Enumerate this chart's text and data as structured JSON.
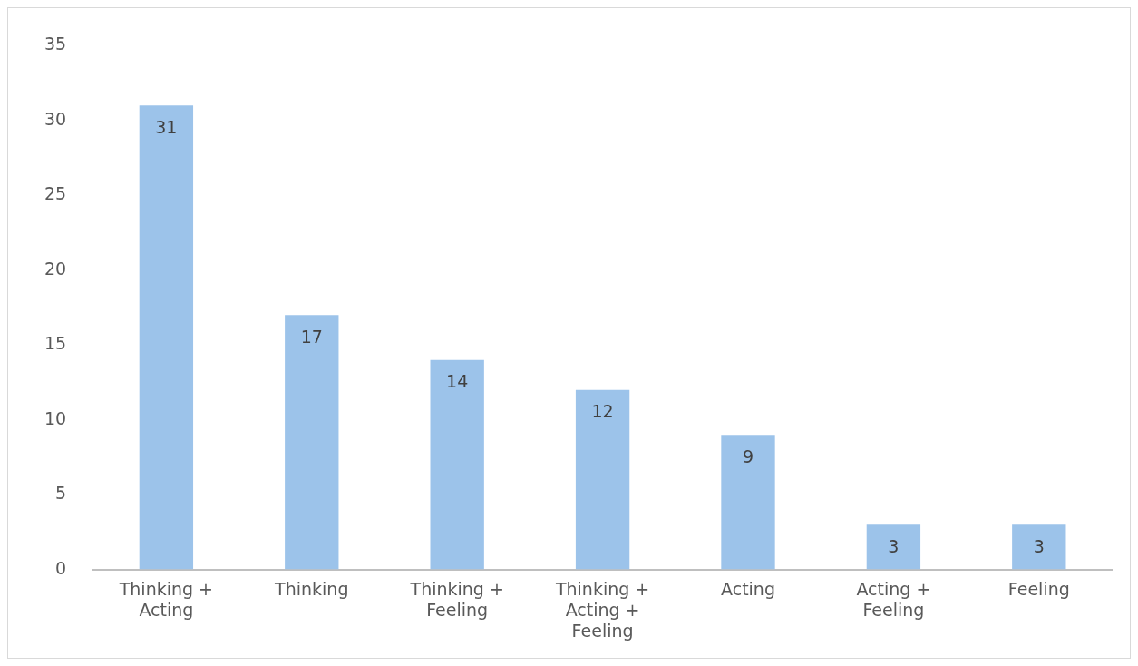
{
  "chart_data": {
    "type": "bar",
    "categories": [
      "Thinking + Acting",
      "Thinking",
      "Thinking + Feeling",
      "Thinking + Acting + Feeling",
      "Acting",
      "Acting + Feeling",
      "Feeling"
    ],
    "values": [
      31,
      17,
      14,
      12,
      9,
      3,
      3
    ],
    "color": "#9cc3ea",
    "ylim": [
      0,
      35
    ],
    "yticks": [
      0,
      5,
      10,
      15,
      20,
      25,
      30,
      35
    ],
    "grid": false,
    "legend": false,
    "data_labels": true
  }
}
